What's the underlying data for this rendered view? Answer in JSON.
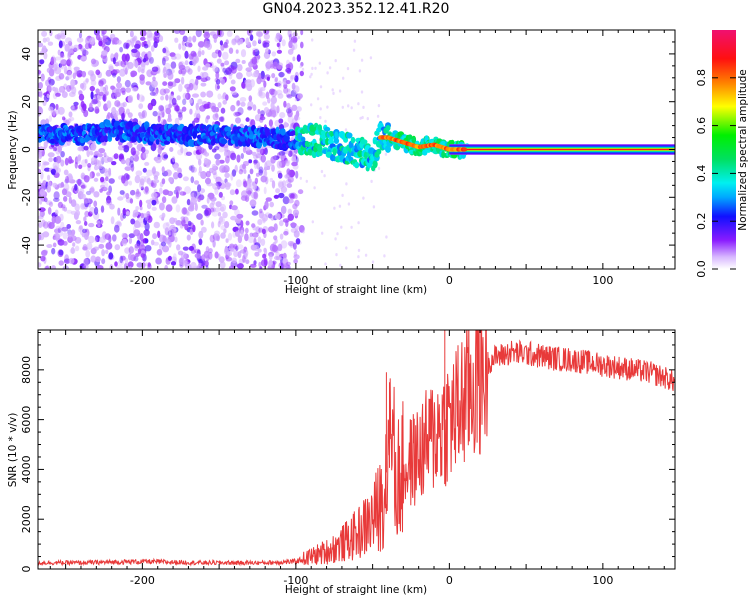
{
  "title": "GN04.2023.352.12.41.R20",
  "chart_data": [
    {
      "type": "heatmap",
      "xlabel": "Height of straight line (km)",
      "ylabel": "Frequency (Hz)",
      "xlim": [
        -268,
        147
      ],
      "ylim": [
        -50,
        50
      ],
      "xticks": [
        -200,
        -100,
        0,
        100
      ],
      "yticks": [
        -40,
        -20,
        0,
        20,
        40
      ],
      "colormap": "rainbow (white-purple to red-pink)",
      "colorbar": {
        "label": "Normalized spectral amplitude",
        "ticks": [
          0.0,
          0.2,
          0.4,
          0.6,
          0.8
        ],
        "range": [
          0,
          1
        ]
      },
      "ridge": [
        {
          "x": -265,
          "y": 7
        },
        {
          "x": -240,
          "y": 6
        },
        {
          "x": -220,
          "y": 8
        },
        {
          "x": -200,
          "y": 7
        },
        {
          "x": -180,
          "y": 6
        },
        {
          "x": -160,
          "y": 6
        },
        {
          "x": -140,
          "y": 6
        },
        {
          "x": -120,
          "y": 5
        },
        {
          "x": -100,
          "y": 4
        },
        {
          "x": -85,
          "y": 4
        },
        {
          "x": -75,
          "y": 2
        },
        {
          "x": -65,
          "y": 0
        },
        {
          "x": -55,
          "y": -2
        },
        {
          "x": -50,
          "y": -4
        },
        {
          "x": -45,
          "y": 5
        },
        {
          "x": -40,
          "y": 5
        },
        {
          "x": -30,
          "y": 3
        },
        {
          "x": -20,
          "y": 1
        },
        {
          "x": -10,
          "y": 2
        },
        {
          "x": 0,
          "y": 0
        },
        {
          "x": 10,
          "y": 0
        },
        {
          "x": 147,
          "y": 0
        }
      ]
    },
    {
      "type": "line",
      "xlabel": "Height of straight line (km)",
      "ylabel": "SNR (10 * v/v)",
      "xlim": [
        -268,
        147
      ],
      "ylim": [
        0,
        9600
      ],
      "xticks": [
        -200,
        -100,
        0,
        100
      ],
      "yticks": [
        0,
        2000,
        4000,
        6000,
        8000
      ],
      "line_color": "#e83a3a",
      "envelope": [
        {
          "x": -268,
          "y": 250
        },
        {
          "x": -240,
          "y": 250
        },
        {
          "x": -200,
          "y": 300
        },
        {
          "x": -160,
          "y": 250
        },
        {
          "x": -120,
          "y": 250
        },
        {
          "x": -100,
          "y": 300
        },
        {
          "x": -90,
          "y": 500
        },
        {
          "x": -80,
          "y": 700
        },
        {
          "x": -70,
          "y": 1000
        },
        {
          "x": -60,
          "y": 1400
        },
        {
          "x": -50,
          "y": 2000
        },
        {
          "x": -45,
          "y": 2600
        },
        {
          "x": -40,
          "y": 4200
        },
        {
          "x": -35,
          "y": 3500
        },
        {
          "x": -30,
          "y": 3900
        },
        {
          "x": -25,
          "y": 4300
        },
        {
          "x": -20,
          "y": 4600
        },
        {
          "x": -15,
          "y": 5000
        },
        {
          "x": -10,
          "y": 5400
        },
        {
          "x": -5,
          "y": 5700
        },
        {
          "x": 0,
          "y": 6000
        },
        {
          "x": 5,
          "y": 6300
        },
        {
          "x": 10,
          "y": 6900
        },
        {
          "x": 15,
          "y": 7400
        },
        {
          "x": 20,
          "y": 7900
        },
        {
          "x": 25,
          "y": 8300
        },
        {
          "x": 30,
          "y": 8500
        },
        {
          "x": 40,
          "y": 8700
        },
        {
          "x": 50,
          "y": 8650
        },
        {
          "x": 60,
          "y": 8550
        },
        {
          "x": 70,
          "y": 8450
        },
        {
          "x": 80,
          "y": 8400
        },
        {
          "x": 90,
          "y": 8300
        },
        {
          "x": 100,
          "y": 8200
        },
        {
          "x": 110,
          "y": 8100
        },
        {
          "x": 120,
          "y": 8000
        },
        {
          "x": 130,
          "y": 7900
        },
        {
          "x": 140,
          "y": 7700
        },
        {
          "x": 147,
          "y": 7500
        }
      ],
      "spikes": [
        {
          "x": -41,
          "y": 7900
        },
        {
          "x": -39,
          "y": 7500
        },
        {
          "x": -3,
          "y": 9600
        }
      ]
    }
  ]
}
